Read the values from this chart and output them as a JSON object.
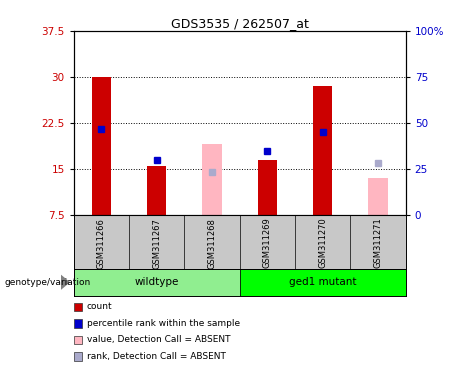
{
  "title": "GDS3535 / 262507_at",
  "samples": [
    "GSM311266",
    "GSM311267",
    "GSM311268",
    "GSM311269",
    "GSM311270",
    "GSM311271"
  ],
  "groups": [
    {
      "label": "wildtype",
      "color": "#90EE90",
      "indices": [
        0,
        1,
        2
      ]
    },
    {
      "label": "ged1 mutant",
      "color": "#00FF00",
      "indices": [
        3,
        4,
        5
      ]
    }
  ],
  "ylim_left": [
    7.5,
    37.5
  ],
  "yticks_left": [
    7.5,
    15.0,
    22.5,
    30.0,
    37.5
  ],
  "ylim_right": [
    0,
    100
  ],
  "yticks_right": [
    0,
    25,
    50,
    75,
    100
  ],
  "red_bars": [
    30.0,
    15.5,
    null,
    16.5,
    28.5,
    null
  ],
  "blue_squares": [
    21.5,
    16.5,
    null,
    18.0,
    21.0,
    null
  ],
  "pink_bars": [
    null,
    null,
    19.0,
    null,
    null,
    13.5
  ],
  "lavender_squares": [
    null,
    null,
    14.5,
    null,
    null,
    16.0
  ],
  "bar_width": 0.35,
  "bar_bottom": 7.5,
  "red_color": "#CC0000",
  "blue_color": "#0000CC",
  "pink_color": "#FFB6C1",
  "lavender_color": "#AAAACC",
  "ylabel_left_color": "#CC0000",
  "ylabel_right_color": "#0000CC",
  "plot_bg": "#FFFFFF",
  "label_area_bg": "#C8C8C8",
  "legend_items": [
    {
      "color": "#CC0000",
      "label": "count"
    },
    {
      "color": "#0000CC",
      "label": "percentile rank within the sample"
    },
    {
      "color": "#FFB6C1",
      "label": "value, Detection Call = ABSENT"
    },
    {
      "color": "#AAAACC",
      "label": "rank, Detection Call = ABSENT"
    }
  ]
}
